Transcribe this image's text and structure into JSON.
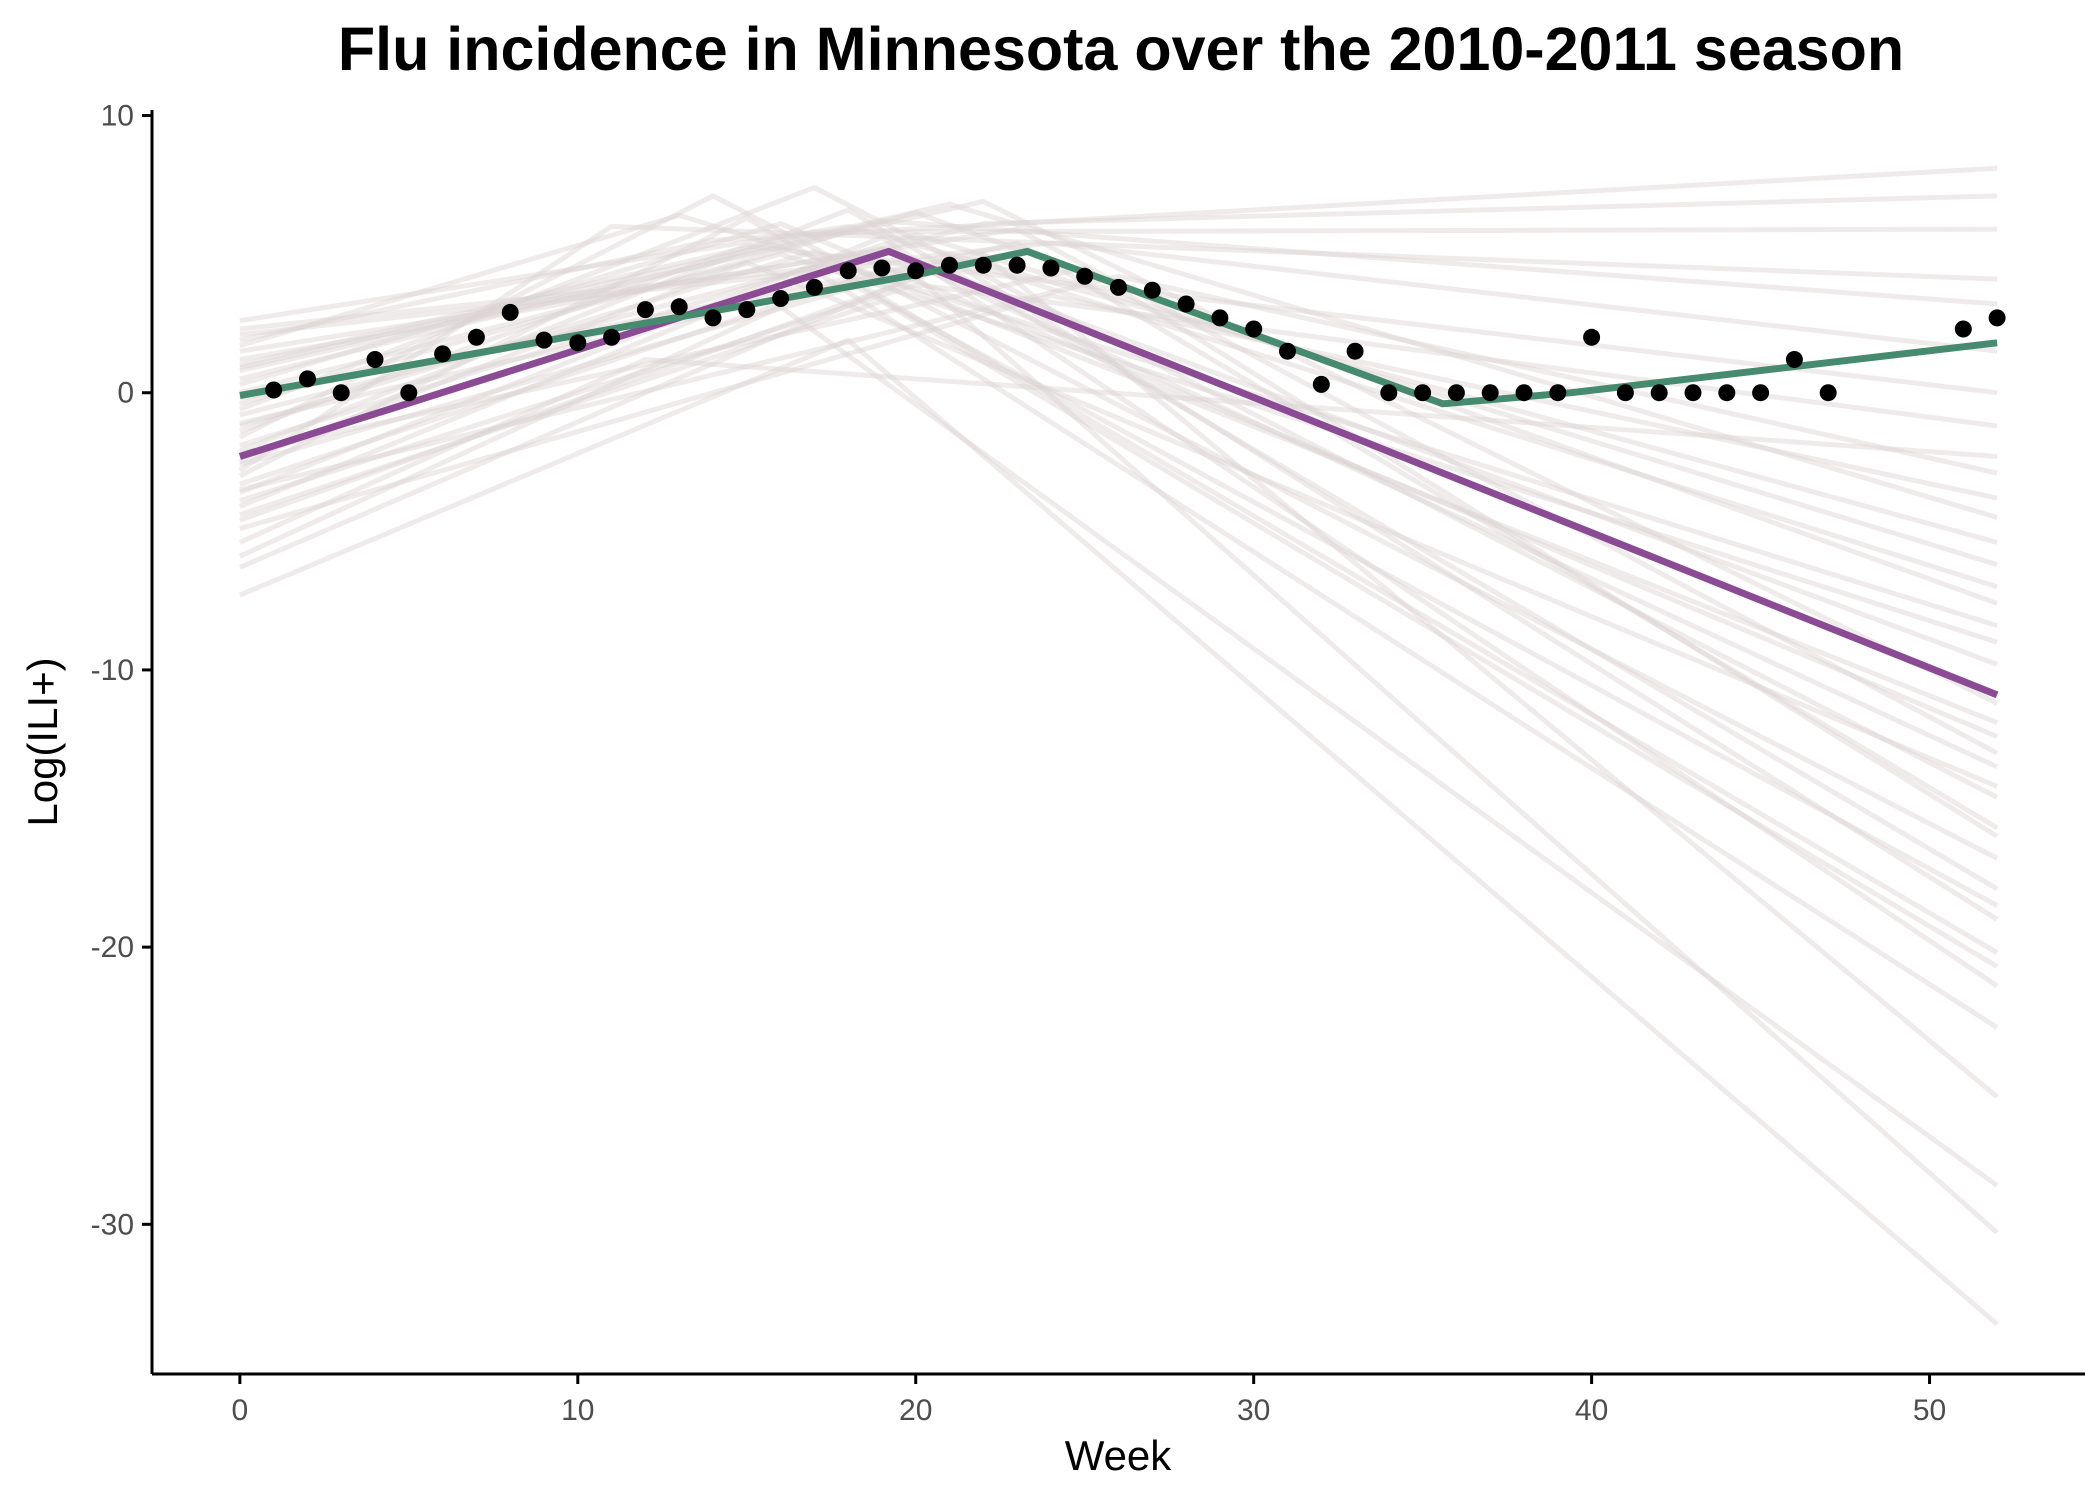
{
  "chart_data": {
    "type": "line",
    "title": "Flu incidence in Minnesota over the 2010-2011 season",
    "xlabel": "Week",
    "ylabel": "Log(ILI+)",
    "xlim": [
      -2.6,
      54.6
    ],
    "ylim": [
      -35.4,
      10.2
    ],
    "x_ticks": [
      0,
      10,
      20,
      30,
      40,
      50
    ],
    "y_ticks": [
      10,
      0,
      -10,
      -20,
      -30
    ],
    "x_tick_labels": [
      "0",
      "10",
      "20",
      "30",
      "40",
      "50"
    ],
    "y_tick_labels": [
      "10",
      "0",
      "-10",
      "-20",
      "-30"
    ],
    "grid": false,
    "legend": "none",
    "colors": {
      "observed": "#000000",
      "green_fit": "#468a6f",
      "purple_fit": "#8b4a94",
      "samples": "#dcd3d3"
    },
    "observed_points": {
      "x": [
        1,
        2,
        3,
        4,
        5,
        6,
        7,
        8,
        9,
        10,
        11,
        12,
        13,
        14,
        15,
        16,
        17,
        18,
        19,
        20,
        21,
        22,
        23,
        24,
        25,
        26,
        27,
        28,
        29,
        30,
        31,
        32,
        33,
        34,
        35,
        36,
        37,
        38,
        39,
        40,
        41,
        42,
        43,
        44,
        45,
        46,
        47,
        51,
        52
      ],
      "y": [
        0.1,
        0.5,
        0.0,
        1.2,
        0.0,
        1.4,
        2.0,
        2.9,
        1.9,
        1.8,
        2.0,
        3.0,
        3.1,
        2.7,
        3.0,
        3.4,
        3.8,
        4.4,
        4.5,
        4.4,
        4.6,
        4.6,
        4.6,
        4.5,
        4.2,
        3.8,
        3.7,
        3.2,
        2.7,
        2.3,
        1.5,
        0.3,
        1.5,
        0.0,
        0.0,
        0.0,
        0.0,
        0.0,
        0.0,
        2.0,
        0.0,
        0.0,
        0.0,
        0.0,
        0.0,
        1.2,
        0.0,
        2.3,
        2.7
      ]
    },
    "series": [
      {
        "x": [
          0,
          19.2,
          52
        ],
        "y": [
          -2.3,
          5.1,
          -10.9
        ]
      },
      {
        "x": [
          0,
          20.2,
          23.3,
          35.6,
          39.4,
          52
        ],
        "y": [
          -0.1,
          4.3,
          5.1,
          -0.4,
          0.0,
          1.8
        ]
      }
    ],
    "background_samples": [
      {
        "x": [
          0,
          18,
          52
        ],
        "y": [
          -7.3,
          1.9,
          -33.6
        ]
      },
      {
        "x": [
          0,
          20,
          52
        ],
        "y": [
          -6.3,
          4.2,
          -30.3
        ]
      },
      {
        "x": [
          0,
          16,
          52
        ],
        "y": [
          -5.9,
          3.1,
          -28.6
        ]
      },
      {
        "x": [
          0,
          22,
          52
        ],
        "y": [
          -4.6,
          5.0,
          -25.4
        ]
      },
      {
        "x": [
          0,
          17,
          52
        ],
        "y": [
          -4.1,
          4.4,
          -22.9
        ]
      },
      {
        "x": [
          0,
          19,
          52
        ],
        "y": [
          -3.6,
          5.6,
          -21.4
        ]
      },
      {
        "x": [
          0,
          15,
          52
        ],
        "y": [
          -3.0,
          6.3,
          -20.2
        ]
      },
      {
        "x": [
          0,
          21,
          52
        ],
        "y": [
          -2.6,
          4.8,
          -19.0
        ]
      },
      {
        "x": [
          0,
          18,
          52
        ],
        "y": [
          -2.1,
          6.6,
          -17.9
        ]
      },
      {
        "x": [
          0,
          14,
          52
        ],
        "y": [
          -1.6,
          7.1,
          -16.8
        ]
      },
      {
        "x": [
          0,
          23,
          52
        ],
        "y": [
          -1.1,
          5.4,
          -15.7
        ]
      },
      {
        "x": [
          0,
          17,
          52
        ],
        "y": [
          -0.6,
          7.4,
          -14.6
        ]
      },
      {
        "x": [
          0,
          20,
          52
        ],
        "y": [
          -0.2,
          4.6,
          -13.5
        ]
      },
      {
        "x": [
          0,
          16,
          52
        ],
        "y": [
          0.3,
          6.1,
          -12.4
        ]
      },
      {
        "x": [
          0,
          22,
          52
        ],
        "y": [
          0.8,
          6.9,
          -11.2
        ]
      },
      {
        "x": [
          0,
          19,
          52
        ],
        "y": [
          1.2,
          5.2,
          -9.8
        ]
      },
      {
        "x": [
          0,
          13,
          52
        ],
        "y": [
          1.7,
          6.4,
          -8.4
        ]
      },
      {
        "x": [
          0,
          21,
          52
        ],
        "y": [
          2.1,
          4.9,
          -7.0
        ]
      },
      {
        "x": [
          0,
          18,
          52
        ],
        "y": [
          2.6,
          6.0,
          -5.4
        ]
      },
      {
        "x": [
          0,
          24,
          52
        ],
        "y": [
          -4.9,
          3.5,
          -3.8
        ]
      },
      {
        "x": [
          0,
          12,
          52
        ],
        "y": [
          -5.4,
          1.2,
          -2.3
        ]
      },
      {
        "x": [
          0,
          20,
          52
        ],
        "y": [
          -3.9,
          3.9,
          -1.2
        ]
      },
      {
        "x": [
          0,
          15,
          52
        ],
        "y": [
          -1.4,
          5.3,
          0.0
        ]
      },
      {
        "x": [
          0,
          19,
          52
        ],
        "y": [
          0.5,
          6.2,
          3.2
        ]
      },
      {
        "x": [
          0,
          11,
          52
        ],
        "y": [
          -2.8,
          6.0,
          4.1
        ]
      },
      {
        "x": [
          0,
          17,
          52
        ],
        "y": [
          1.0,
          5.8,
          5.9
        ]
      },
      {
        "x": [
          0,
          22,
          52
        ],
        "y": [
          -0.8,
          6.1,
          7.1
        ]
      },
      {
        "x": [
          0,
          14,
          52
        ],
        "y": [
          1.9,
          5.5,
          8.1
        ]
      },
      {
        "x": [
          0,
          25,
          52
        ],
        "y": [
          -2.2,
          4.5,
          -16.0
        ]
      },
      {
        "x": [
          0,
          16,
          52
        ],
        "y": [
          0.0,
          5.0,
          -9.0
        ]
      },
      {
        "x": [
          0,
          20,
          52
        ],
        "y": [
          -1.9,
          5.7,
          -6.2
        ]
      },
      {
        "x": [
          0,
          18,
          52
        ],
        "y": [
          -3.3,
          4.0,
          -18.5
        ]
      },
      {
        "x": [
          0,
          23,
          52
        ],
        "y": [
          1.5,
          5.9,
          -13.0
        ]
      },
      {
        "x": [
          0,
          19,
          52
        ],
        "y": [
          -4.4,
          3.3,
          -20.7
        ]
      },
      {
        "x": [
          0,
          21,
          52
        ],
        "y": [
          0.9,
          6.8,
          -4.5
        ]
      },
      {
        "x": [
          0,
          17,
          52
        ],
        "y": [
          -1.2,
          5.1,
          -11.9
        ]
      },
      {
        "x": [
          0,
          24,
          52
        ],
        "y": [
          2.3,
          5.4,
          1.5
        ]
      },
      {
        "x": [
          0,
          15,
          52
        ],
        "y": [
          -2.5,
          4.7,
          -14.2
        ]
      },
      {
        "x": [
          0,
          20,
          52
        ],
        "y": [
          -0.4,
          6.5,
          -7.6
        ]
      },
      {
        "x": [
          0,
          26,
          52
        ],
        "y": [
          -3.5,
          4.2,
          -2.9
        ]
      }
    ]
  }
}
